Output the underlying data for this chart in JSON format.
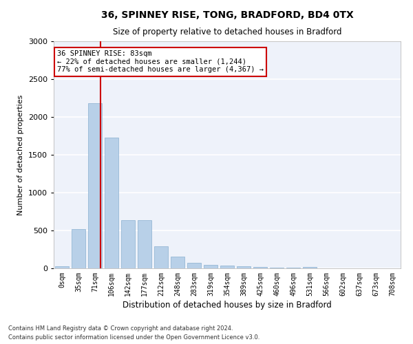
{
  "title_line1": "36, SPINNEY RISE, TONG, BRADFORD, BD4 0TX",
  "title_line2": "Size of property relative to detached houses in Bradford",
  "xlabel": "Distribution of detached houses by size in Bradford",
  "ylabel": "Number of detached properties",
  "bar_color": "#b8d0e8",
  "bar_edge_color": "#8ab0d0",
  "background_color": "#eef2fa",
  "grid_color": "#ffffff",
  "vline_color": "#cc0000",
  "annotation_text": "36 SPINNEY RISE: 83sqm\n← 22% of detached houses are smaller (1,244)\n77% of semi-detached houses are larger (4,367) →",
  "annotation_box_facecolor": "#ffffff",
  "annotation_box_edgecolor": "#cc0000",
  "categories": [
    "0sqm",
    "35sqm",
    "71sqm",
    "106sqm",
    "142sqm",
    "177sqm",
    "212sqm",
    "248sqm",
    "283sqm",
    "319sqm",
    "354sqm",
    "389sqm",
    "425sqm",
    "460sqm",
    "496sqm",
    "531sqm",
    "566sqm",
    "602sqm",
    "637sqm",
    "673sqm",
    "708sqm"
  ],
  "values": [
    25,
    520,
    2185,
    1730,
    635,
    635,
    290,
    155,
    75,
    50,
    35,
    25,
    20,
    10,
    5,
    20,
    0,
    0,
    0,
    0,
    0
  ],
  "ylim": [
    0,
    3000
  ],
  "yticks": [
    0,
    500,
    1000,
    1500,
    2000,
    2500,
    3000
  ],
  "footnote1": "Contains HM Land Registry data © Crown copyright and database right 2024.",
  "footnote2": "Contains public sector information licensed under the Open Government Licence v3.0."
}
